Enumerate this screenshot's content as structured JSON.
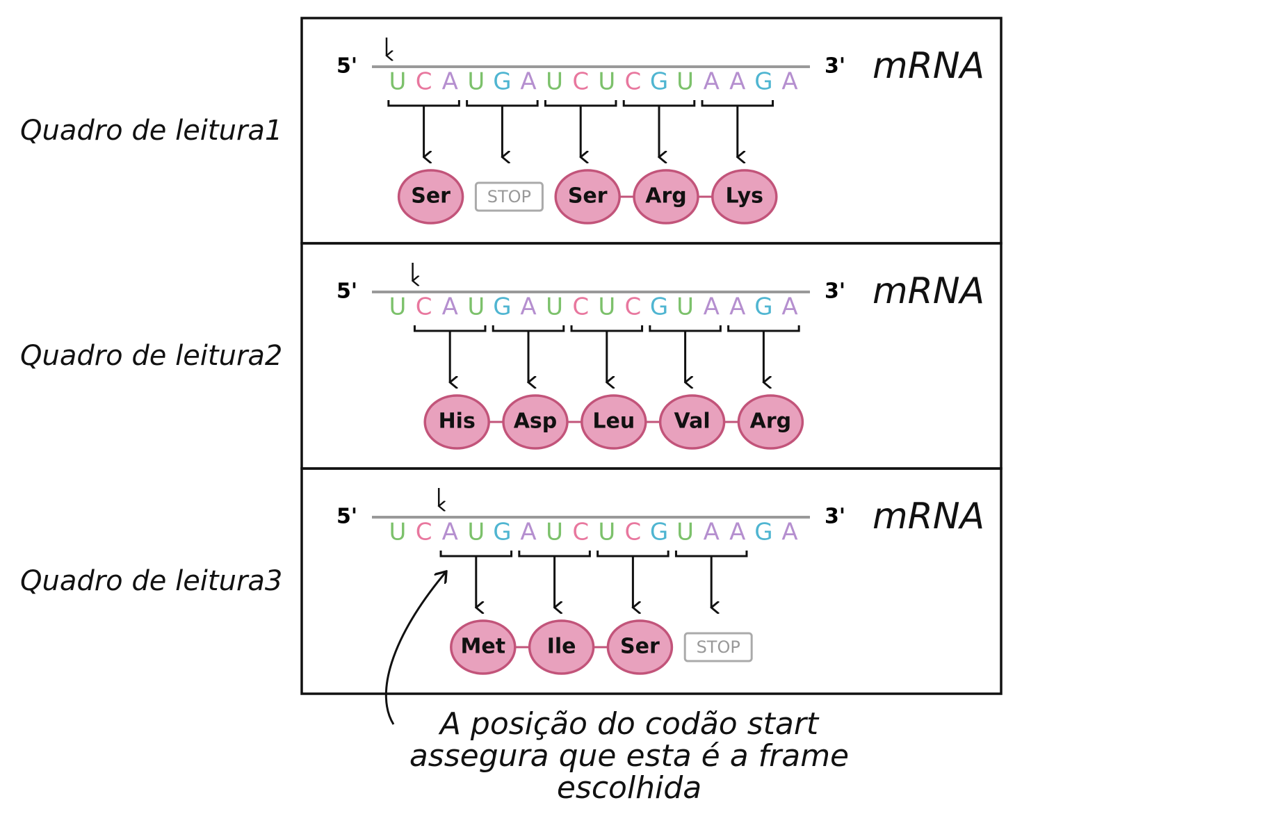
{
  "frames": [
    {
      "label": "Quadro de leitura1",
      "five_prime": "5'",
      "three_prime": "3'",
      "molecule": "mRNA",
      "start": 0,
      "bases": [
        "U",
        "C",
        "A",
        "U",
        "G",
        "A",
        "U",
        "C",
        "U",
        "C",
        "G",
        "U",
        "A",
        "A",
        "G",
        "A"
      ],
      "products": [
        {
          "label": "Ser",
          "stop": false
        },
        {
          "label": "STOP",
          "stop": true
        },
        {
          "label": "Ser",
          "stop": false
        },
        {
          "label": "Arg",
          "stop": false
        },
        {
          "label": "Lys",
          "stop": false
        }
      ]
    },
    {
      "label": "Quadro de leitura2",
      "five_prime": "5'",
      "three_prime": "3'",
      "molecule": "mRNA",
      "start": 1,
      "bases": [
        "U",
        "C",
        "A",
        "U",
        "G",
        "A",
        "U",
        "C",
        "U",
        "C",
        "G",
        "U",
        "A",
        "A",
        "G",
        "A"
      ],
      "products": [
        {
          "label": "His",
          "stop": false
        },
        {
          "label": "Asp",
          "stop": false
        },
        {
          "label": "Leu",
          "stop": false
        },
        {
          "label": "Val",
          "stop": false
        },
        {
          "label": "Arg",
          "stop": false
        }
      ]
    },
    {
      "label": "Quadro de leitura3",
      "five_prime": "5'",
      "three_prime": "3'",
      "molecule": "mRNA",
      "start": 2,
      "bases": [
        "U",
        "C",
        "A",
        "U",
        "G",
        "A",
        "U",
        "C",
        "U",
        "C",
        "G",
        "U",
        "A",
        "A",
        "G",
        "A"
      ],
      "products": [
        {
          "label": "Met",
          "stop": false
        },
        {
          "label": "Ile",
          "stop": false
        },
        {
          "label": "Ser",
          "stop": false
        },
        {
          "label": "STOP",
          "stop": true
        }
      ]
    }
  ],
  "base_colors": {
    "U": "#7cc16b",
    "C": "#e8779e",
    "A": "#b58fcf",
    "G": "#4fb5d1"
  },
  "annotation": [
    "A posição do codão start",
    "assegura que esta é a frame",
    "escolhida"
  ]
}
